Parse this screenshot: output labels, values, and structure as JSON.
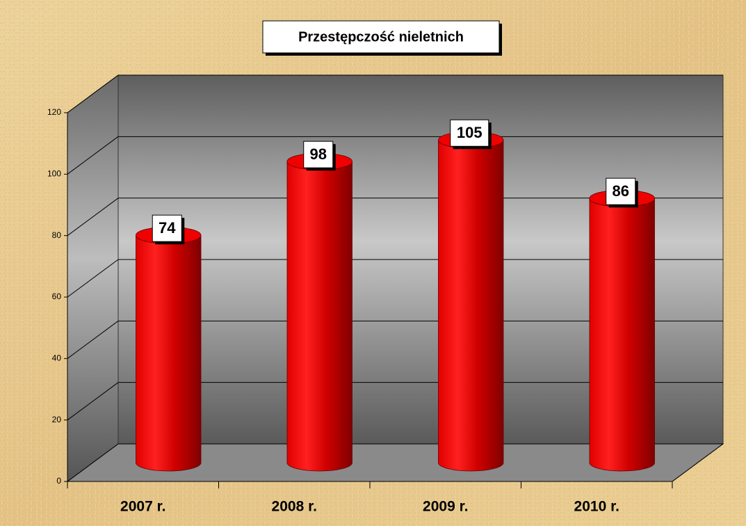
{
  "chart_data": {
    "type": "bar",
    "title": "Przestępczość nieletnich",
    "categories": [
      "2007 r.",
      "2008 r.",
      "2009 r.",
      "2010 r."
    ],
    "values": [
      74,
      98,
      105,
      86
    ],
    "color": "#ff0000",
    "ylim": [
      0,
      120
    ],
    "yticks": [
      0,
      20,
      40,
      60,
      80,
      100,
      120
    ],
    "grid": true
  }
}
